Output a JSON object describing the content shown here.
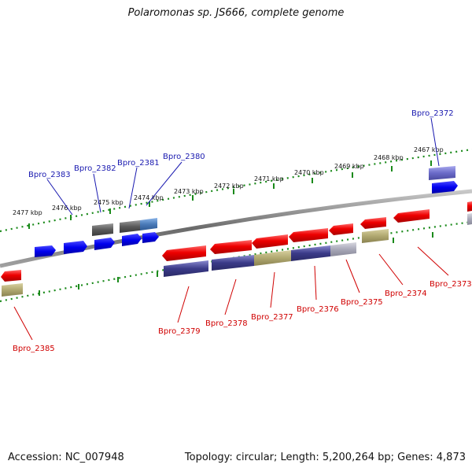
{
  "title": "Polaromonas sp. JS666, complete genome",
  "footer": {
    "accession": "Accession: NC_007948",
    "topology": "Topology: circular; Length: 5,200,264 bp; Genes: 4,873"
  },
  "colors": {
    "backbone": "#7a7a7a",
    "tick": "#1a8a1a",
    "gene_blue": "#0000ee",
    "gene_red": "#ee0000",
    "gene_grey": "#555555",
    "gene_steel": "#4a7ab8",
    "gene_purple": "#3a3a88",
    "gene_lavender": "#6a6ac8",
    "gene_olive": "#b0a870",
    "gene_light": "#a8a8b8"
  },
  "scale_labels": [
    "2477 kbp",
    "2476 kbp",
    "2475 kbp",
    "2474 kbp",
    "2473 kbp",
    "2472 kbp",
    "2471 kbp",
    "2470 kbp",
    "2469 kbp",
    "2468 kbp",
    "2467 kbp"
  ],
  "labels_top": [
    "Bpro_2383",
    "Bpro_2382",
    "Bpro_2381",
    "Bpro_2380",
    "Bpro_2372"
  ],
  "labels_bottom": [
    "Bpro_2385",
    "Bpro_2379",
    "Bpro_2378",
    "Bpro_2377",
    "Bpro_2376",
    "Bpro_2375",
    "Bpro_2374",
    "Bpro_2373"
  ]
}
